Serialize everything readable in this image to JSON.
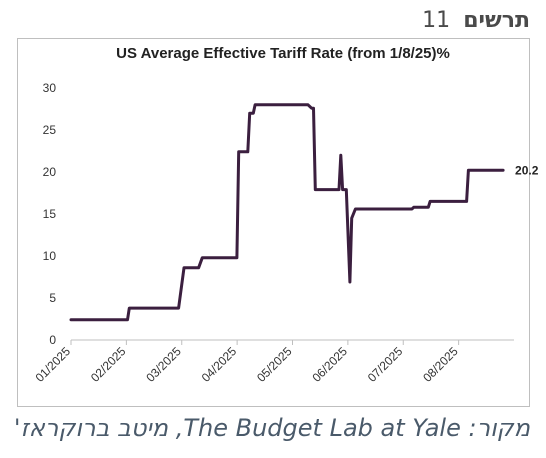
{
  "figure": {
    "heading_word": "תרשים",
    "heading_number": "11",
    "source_note": "מקור: The Budget Lab at Yale, מיטב ברוקראז'"
  },
  "colors": {
    "line": "#3b1f3f",
    "axis": "#bfbfbf",
    "text": "#333333",
    "frame": "#bfbfbf"
  },
  "chart_data": {
    "type": "line",
    "title": "US Average Effective Tariff Rate (from 1/8/25)%",
    "xlabel": "",
    "ylabel": "",
    "ylim": [
      0,
      30
    ],
    "yticks": [
      0,
      5,
      10,
      15,
      20,
      25,
      30
    ],
    "xticks": [
      "01/2025",
      "02/2025",
      "03/2025",
      "04/2025",
      "05/2025",
      "06/2025",
      "07/2025",
      "08/2025"
    ],
    "grid": false,
    "legend": "none",
    "end_label": "20.2",
    "series": [
      {
        "points": [
          [
            "2025-01-01",
            2.4
          ],
          [
            "2025-02-01",
            2.4
          ],
          [
            "2025-02-02",
            3.8
          ],
          [
            "2025-03-01",
            3.8
          ],
          [
            "2025-03-04",
            8.6
          ],
          [
            "2025-03-12",
            8.6
          ],
          [
            "2025-03-14",
            9.8
          ],
          [
            "2025-04-02",
            9.8
          ],
          [
            "2025-04-03",
            22.4
          ],
          [
            "2025-04-08",
            22.4
          ],
          [
            "2025-04-09",
            27.0
          ],
          [
            "2025-04-11",
            27.0
          ],
          [
            "2025-04-12",
            28.0
          ],
          [
            "2025-05-11",
            28.0
          ],
          [
            "2025-05-13",
            27.6
          ],
          [
            "2025-05-14",
            27.6
          ],
          [
            "2025-05-15",
            17.9
          ],
          [
            "2025-05-28",
            17.9
          ],
          [
            "2025-05-29",
            22.0
          ],
          [
            "2025-05-30",
            17.9
          ],
          [
            "2025-06-01",
            17.9
          ],
          [
            "2025-06-03",
            6.9
          ],
          [
            "2025-06-04",
            14.5
          ],
          [
            "2025-06-06",
            15.6
          ],
          [
            "2025-07-07",
            15.6
          ],
          [
            "2025-07-08",
            15.8
          ],
          [
            "2025-07-16",
            15.8
          ],
          [
            "2025-07-17",
            16.5
          ],
          [
            "2025-08-06",
            16.5
          ],
          [
            "2025-08-07",
            20.2
          ],
          [
            "2025-08-26",
            20.2
          ]
        ]
      }
    ]
  }
}
